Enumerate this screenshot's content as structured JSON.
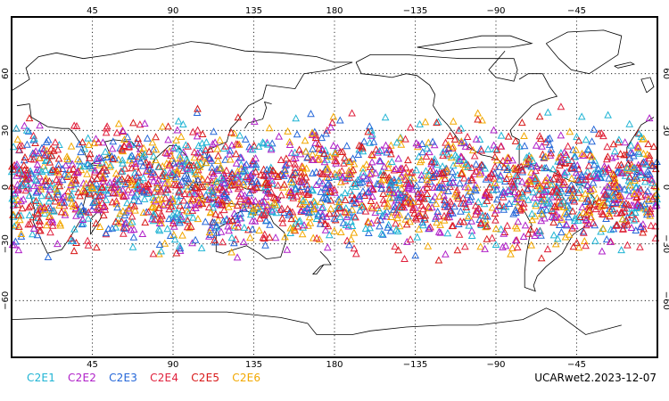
{
  "map": {
    "projection": "cylindrical",
    "center_longitude": 180,
    "grid": true,
    "top_longitude_labels": [
      "45",
      "90",
      "135",
      "180",
      "−135",
      "−90",
      "−45"
    ],
    "bottom_longitude_labels": [
      "45",
      "90",
      "135",
      "180",
      "−135",
      "−90",
      "−45"
    ],
    "left_latitude_labels": [
      "60",
      "30",
      "0",
      "−30",
      "−60"
    ],
    "right_latitude_labels": [
      "60",
      "30",
      "0",
      "−30",
      "−60"
    ],
    "series": [
      {
        "name": "C2E1",
        "color": "#1fb4d4"
      },
      {
        "name": "C2E2",
        "color": "#b020c8"
      },
      {
        "name": "C2E3",
        "color": "#2466d8"
      },
      {
        "name": "C2E4",
        "color": "#e0203c"
      },
      {
        "name": "C2E5",
        "color": "#d81818"
      },
      {
        "name": "C2E6",
        "color": "#f2a800"
      }
    ],
    "observation_marker": "triangle",
    "observation_latitude_range": [
      -45,
      45
    ],
    "stamp": "UCARwet2.2023-12-07"
  }
}
